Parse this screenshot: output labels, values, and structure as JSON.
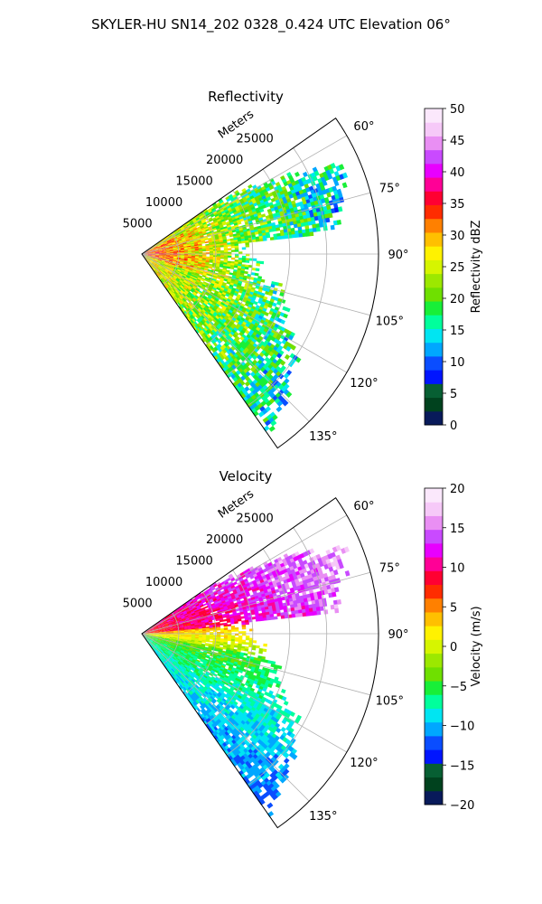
{
  "figure": {
    "suptitle": "SKYLER-HU  SN14_202  0328_0.424 UTC Elevation 06°"
  },
  "chart_data": [
    {
      "type": "heatmap",
      "projection": "polar sector (PPI)",
      "title": "Reflectivity",
      "radial_label": "Meters",
      "radial_ticks": [
        5000,
        10000,
        15000,
        20000,
        25000
      ],
      "radial_tick_labels": [
        "5000",
        "10000",
        "15000",
        "20000",
        "25000"
      ],
      "rlim": [
        0,
        32000
      ],
      "azimuth_ticks": [
        60,
        75,
        90,
        105,
        120,
        135
      ],
      "azimuth_tick_labels": [
        "60°",
        "75°",
        "90°",
        "105°",
        "120°",
        "135°"
      ],
      "azimuth_range": [
        55,
        145
      ],
      "grid": true,
      "colorbar": {
        "label": "Reflectivity dBZ",
        "range": [
          0,
          50
        ],
        "ticks": [
          0,
          5,
          10,
          15,
          20,
          25,
          30,
          35,
          40,
          45,
          50
        ],
        "tick_labels": [
          "0",
          "5",
          "10",
          "15",
          "20",
          "25",
          "30",
          "35",
          "40",
          "45",
          "50"
        ],
        "colors": [
          "#081a5a",
          "#00421e",
          "#075f33",
          "#0015ff",
          "#0a4dff",
          "#00a7ff",
          "#00e5f2",
          "#00ff9c",
          "#18ef38",
          "#6fe000",
          "#9ce800",
          "#d6f500",
          "#fff200",
          "#ffc000",
          "#ff8000",
          "#ff2c00",
          "#ff0032",
          "#ff0096",
          "#e800ff",
          "#c94aff",
          "#e98ff3",
          "#f6c9f8",
          "#fbe8fc"
        ]
      }
    },
    {
      "type": "heatmap",
      "projection": "polar sector (PPI)",
      "title": "Velocity",
      "radial_label": "Meters",
      "radial_ticks": [
        5000,
        10000,
        15000,
        20000,
        25000
      ],
      "radial_tick_labels": [
        "5000",
        "10000",
        "15000",
        "20000",
        "25000"
      ],
      "rlim": [
        0,
        32000
      ],
      "azimuth_ticks": [
        60,
        75,
        90,
        105,
        120,
        135
      ],
      "azimuth_tick_labels": [
        "60°",
        "75°",
        "90°",
        "105°",
        "120°",
        "135°"
      ],
      "azimuth_range": [
        55,
        145
      ],
      "grid": true,
      "colorbar": {
        "label": "Velocity (m/s)",
        "range": [
          -20,
          20
        ],
        "ticks": [
          -20,
          -15,
          -10,
          -5,
          0,
          5,
          10,
          15,
          20
        ],
        "tick_labels": [
          "−20",
          "−15",
          "−10",
          "−5",
          "0",
          "5",
          "10",
          "15",
          "20"
        ],
        "colors": [
          "#081a5a",
          "#00421e",
          "#075f33",
          "#0015ff",
          "#0a4dff",
          "#00a7ff",
          "#00e5f2",
          "#00ff9c",
          "#18ef38",
          "#6fe000",
          "#9ce800",
          "#d6f500",
          "#fff200",
          "#ffc000",
          "#ff8000",
          "#ff2c00",
          "#ff0032",
          "#ff0096",
          "#e800ff",
          "#c94aff",
          "#e98ff3",
          "#f6c9f8",
          "#fbe8fc"
        ]
      }
    }
  ]
}
